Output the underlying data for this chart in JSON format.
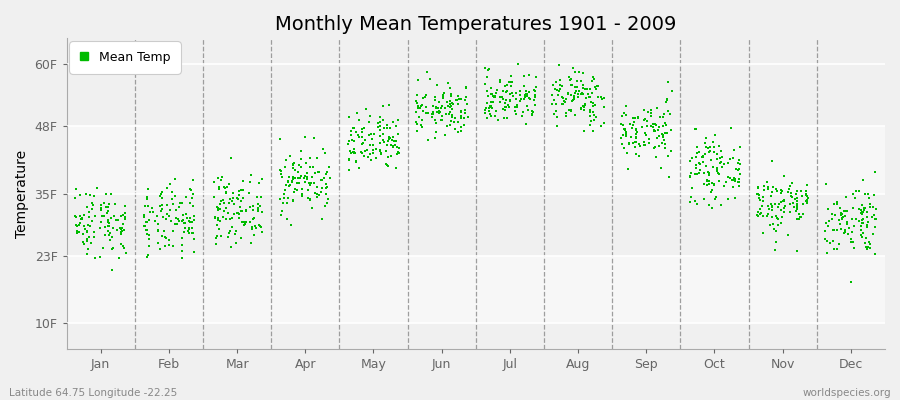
{
  "title": "Monthly Mean Temperatures 1901 - 2009",
  "ylabel": "Temperature",
  "yticks": [
    10,
    23,
    35,
    48,
    60
  ],
  "ytick_labels": [
    "10F",
    "23F",
    "35F",
    "48F",
    "60F"
  ],
  "ylim": [
    5,
    65
  ],
  "months": [
    "Jan",
    "Feb",
    "Mar",
    "Apr",
    "May",
    "Jun",
    "Jul",
    "Aug",
    "Sep",
    "Oct",
    "Nov",
    "Dec"
  ],
  "dot_color": "#00bb00",
  "plot_bg_color": "#f0f0f0",
  "fig_bg_color": "#f0f0f0",
  "legend_label": "Mean Temp",
  "bottom_left_text": "Latitude 64.75 Longitude -22.25",
  "bottom_right_text": "worldspecies.org",
  "monthly_means_F": [
    29.5,
    29.5,
    32.0,
    37.5,
    44.5,
    51.0,
    53.5,
    53.5,
    47.0,
    39.5,
    33.0,
    30.0
  ],
  "monthly_stds_F": [
    3.5,
    3.5,
    3.2,
    3.2,
    3.0,
    2.5,
    2.5,
    2.8,
    3.0,
    3.0,
    3.0,
    3.5
  ],
  "num_years": 109,
  "seed": 42
}
